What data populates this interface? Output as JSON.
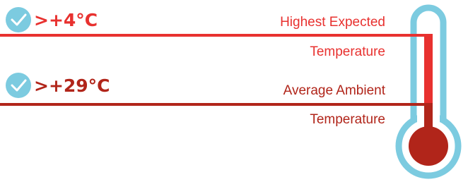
{
  "items": [
    {
      "badge": ">+4°C",
      "label_lines": [
        "Highest Expected",
        "Temperature"
      ]
    },
    {
      "badge": ">+29°C",
      "label_lines": [
        "Average Ambient",
        "Temperature"
      ]
    }
  ]
}
